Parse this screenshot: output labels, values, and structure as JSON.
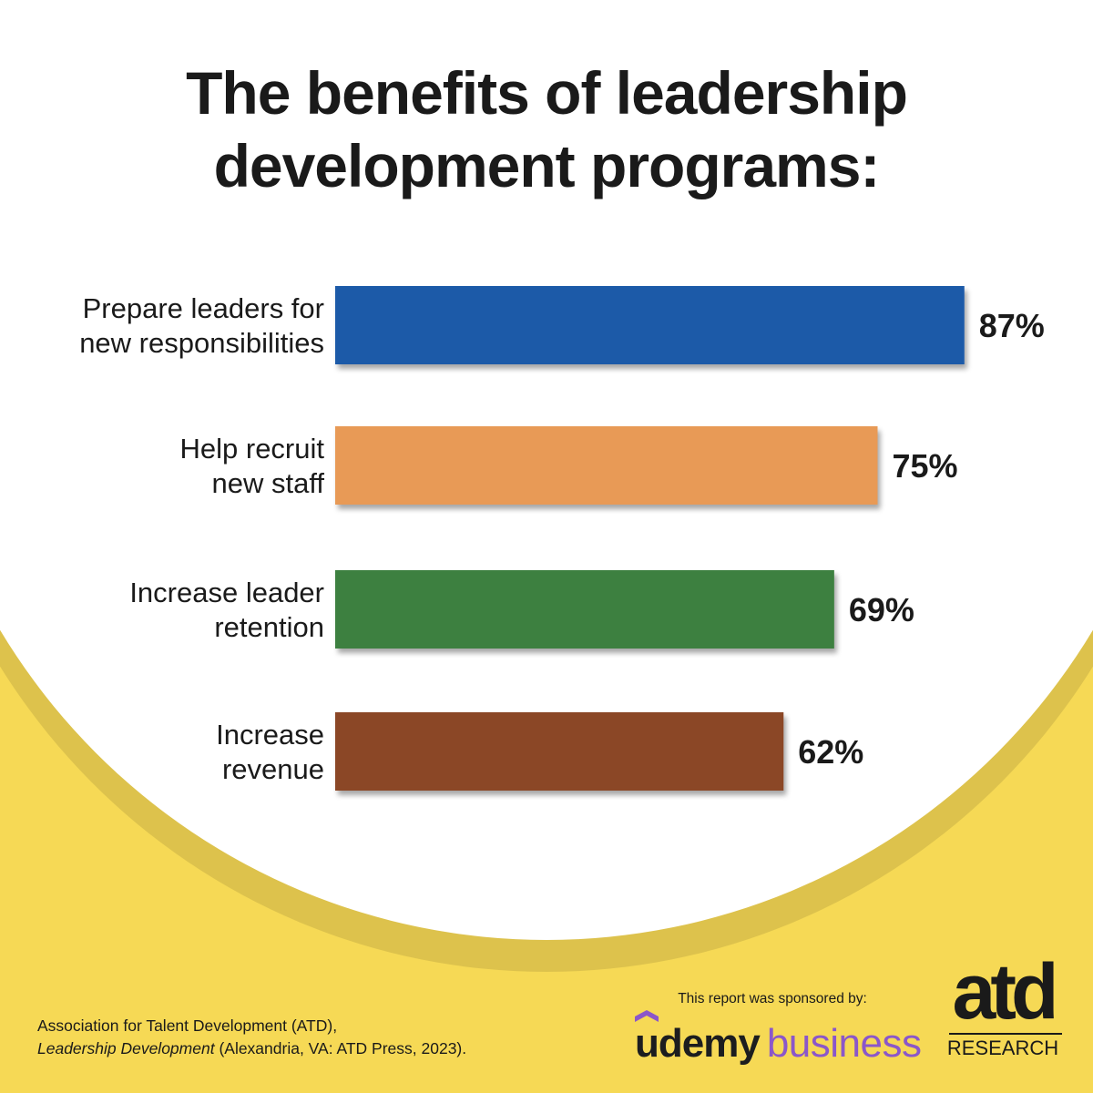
{
  "title": {
    "line1": "The benefits of leadership",
    "line2": "development programs:"
  },
  "colors": {
    "background_yellow": "#f6d955",
    "background_white": "#ffffff",
    "text": "#1a1a1a",
    "udemy_purple": "#8b57c9"
  },
  "chart_data": {
    "type": "bar",
    "orientation": "horizontal",
    "title": "The benefits of leadership development programs:",
    "categories": [
      [
        "Prepare leaders for",
        "new responsibilities"
      ],
      [
        "Help recruit",
        "new staff"
      ],
      [
        "Increase leader",
        "retention"
      ],
      [
        "Increase",
        "revenue"
      ]
    ],
    "values": [
      87,
      75,
      69,
      62
    ],
    "value_labels": [
      "87%",
      "75%",
      "69%",
      "62%"
    ],
    "bar_colors": [
      "#1e5aa8",
      "#e89a56",
      "#3d8040",
      "#8b4726"
    ],
    "xlim": [
      0,
      100
    ],
    "xlabel": "",
    "ylabel": "",
    "grid": false,
    "legend": "none"
  },
  "citation": {
    "line1": "Association for Talent Development (ATD),",
    "line2_italic": "Leadership Development",
    "line2_rest": " (Alexandria, VA: ATD Press, 2023)."
  },
  "sponsor": {
    "text": "This report was sponsored by:",
    "udemy": "udemy",
    "business": "business"
  },
  "atd_logo": {
    "word": "atd",
    "sub": "RESEARCH"
  }
}
